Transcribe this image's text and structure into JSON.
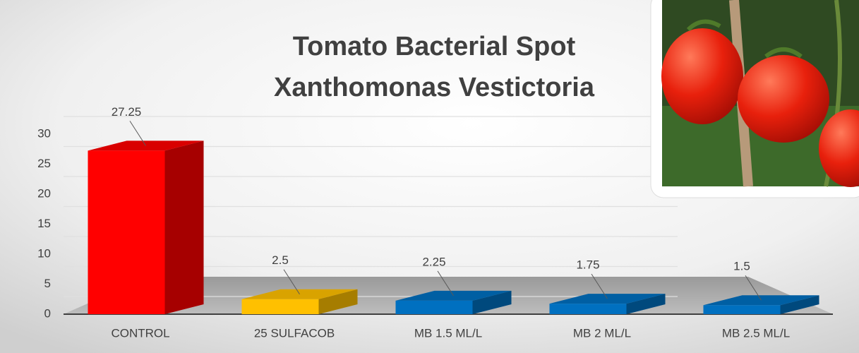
{
  "chart_data": {
    "type": "bar3d",
    "title": "Tomato Bacterial Spot",
    "subtitle": "Xanthomonas Vestictoria",
    "categories": [
      "CONTROL",
      "25 SULFACOB",
      "MB 1.5 ML/L",
      "MB 2 ML/L",
      "MB 2.5 ML/L"
    ],
    "values": [
      27.25,
      2.5,
      2.25,
      1.75,
      1.5
    ],
    "colors": [
      "#ff0000",
      "#ffc000",
      "#0070c0",
      "#0070c0",
      "#0070c0"
    ],
    "ylim": [
      0,
      30
    ],
    "yticks": [
      0,
      5,
      10,
      15,
      20,
      25,
      30
    ],
    "grid": true
  }
}
